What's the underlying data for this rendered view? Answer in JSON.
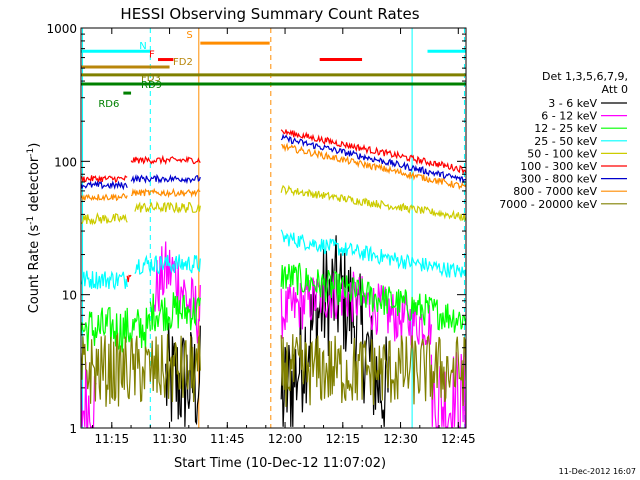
{
  "chart_data": {
    "type": "line",
    "title": "HESSI Observing Summary Count Rates",
    "xlabel": "Start Time (10-Dec-12 11:07:02)",
    "ylabel": "Count Rate (s",
    "ylabel_sup": "-1",
    "ylabel_tail": " detector",
    "ylabel_sup2": "-1",
    "ylabel_end": ")",
    "yscale": "log",
    "ylim": [
      1,
      1000
    ],
    "xlim_minutes": [
      0,
      100
    ],
    "x_ticks": [
      "11:15",
      "11:30",
      "11:45",
      "12:00",
      "12:15",
      "12:30",
      "12:45"
    ],
    "y_ticks": [
      "1",
      "10",
      "100",
      "1000"
    ],
    "legend_header": [
      "Det 1,3,5,6,7,9,",
      "Att 0"
    ],
    "footer": "11-Dec-2012 16:07",
    "series": [
      {
        "name": "3 - 6 keV",
        "color": "#000000",
        "segments": [
          {
            "x0": 22,
            "x1": 31,
            "base": 2.2,
            "spread": 0.9
          },
          {
            "x0": 52,
            "x1": 80,
            "peak_x": 66,
            "base": 1.6,
            "peak": 10,
            "spread": 0.9
          }
        ]
      },
      {
        "name": "6 - 12 keV",
        "color": "#ff00ff",
        "segments": [
          {
            "x0": 0,
            "x1": 4,
            "base": 1.4,
            "spread": 0.9
          },
          {
            "x0": 19,
            "x1": 31,
            "peak_x": 23,
            "base": 7,
            "peak": 15,
            "spread": 0.5
          },
          {
            "x0": 52,
            "x1": 91,
            "peak_x": 66,
            "base": 6,
            "peak": 10,
            "spread": 0.4
          },
          {
            "x0": 91,
            "x1": 100,
            "base": 1.5,
            "spread": 0.9
          }
        ]
      },
      {
        "name": "12 - 25 keV",
        "color": "#00ff00",
        "segments": [
          {
            "x0": 0,
            "x1": 18,
            "base": 5.5,
            "spread": 0.35
          },
          {
            "x0": 18,
            "x1": 31,
            "base": 7.5,
            "spread": 0.3
          },
          {
            "x0": 52,
            "x1": 100,
            "start": 14,
            "end": 6.5,
            "spread": 0.25
          }
        ]
      },
      {
        "name": "25 - 50 keV",
        "color": "#00ffff",
        "segments": [
          {
            "x0": 0,
            "x1": 12,
            "base": 13,
            "spread": 0.15
          },
          {
            "x0": 14,
            "x1": 31,
            "base": 17,
            "spread": 0.15
          },
          {
            "x0": 52,
            "x1": 100,
            "start": 27,
            "end": 14.5,
            "spread": 0.12
          }
        ]
      },
      {
        "name": "50 - 100 keV",
        "color": "#cccc00",
        "segments": [
          {
            "x0": 0,
            "x1": 12,
            "base": 37,
            "spread": 0.08
          },
          {
            "x0": 14,
            "x1": 31,
            "base": 45,
            "spread": 0.08
          },
          {
            "x0": 52,
            "x1": 100,
            "start": 62,
            "end": 38,
            "spread": 0.06
          }
        ]
      },
      {
        "name": "100 - 300 keV",
        "color": "#ff0000",
        "segments": [
          {
            "x0": 0,
            "x1": 12,
            "base": 74,
            "spread": 0.05
          },
          {
            "x0": 12,
            "x1": 13,
            "base": 13,
            "spread": 0.1
          },
          {
            "x0": 13,
            "x1": 31,
            "base": 102,
            "spread": 0.05
          },
          {
            "x0": 52,
            "x1": 100,
            "start": 168,
            "end": 86,
            "spread": 0.05
          }
        ]
      },
      {
        "name": "300 - 800 keV",
        "color": "#0000cc",
        "segments": [
          {
            "x0": 0,
            "x1": 12,
            "base": 66,
            "spread": 0.05
          },
          {
            "x0": 13,
            "x1": 31,
            "base": 74,
            "spread": 0.05
          },
          {
            "x0": 52,
            "x1": 100,
            "start": 150,
            "end": 72,
            "spread": 0.05
          }
        ]
      },
      {
        "name": "800 - 7000 keV",
        "color": "#ff8c00",
        "segments": [
          {
            "x0": 0,
            "x1": 12,
            "base": 54,
            "spread": 0.05
          },
          {
            "x0": 13,
            "x1": 31,
            "base": 58,
            "spread": 0.05
          },
          {
            "x0": 52,
            "x1": 100,
            "start": 130,
            "end": 64,
            "spread": 0.05
          }
        ]
      },
      {
        "name": "7000 - 20000 keV",
        "color": "#808000",
        "segments": [
          {
            "x0": 0,
            "x1": 31,
            "base": 2.7,
            "spread": 0.55
          },
          {
            "x0": 52,
            "x1": 100,
            "base": 2.7,
            "spread": 0.55
          }
        ]
      }
    ],
    "flag_bars": [
      {
        "label": "N",
        "color": "#00ffff",
        "y": 670,
        "x0": 0,
        "x1": 18
      },
      {
        "label": "N",
        "color": "#00ffff",
        "y": 670,
        "x0": 90,
        "x1": 100
      },
      {
        "label": "F",
        "color": "#ff0000",
        "y": 580,
        "x0": 20,
        "x1": 24
      },
      {
        "label": "F",
        "color": "#ff0000",
        "y": 580,
        "x0": 62,
        "x1": 73
      },
      {
        "label": "S",
        "color": "#ff8c00",
        "y": 770,
        "x0": 31,
        "x1": 49
      },
      {
        "label": "FD2",
        "color": "#b8860b",
        "y": 510,
        "x0": 0,
        "x1": 23
      },
      {
        "label": "FD3",
        "color": "#808000",
        "y": 445,
        "x0": 0,
        "x1": 100
      },
      {
        "label": "RD9",
        "color": "#008000",
        "y": 380,
        "x0": 0,
        "x1": 100
      },
      {
        "label": "RD6",
        "color": "#008000",
        "y": 325,
        "x0": 11,
        "x1": 13
      }
    ],
    "vlines": [
      {
        "x": 0.4,
        "color": "#00ffff",
        "style": "solid"
      },
      {
        "x": 18,
        "color": "#00ffff",
        "style": "dashed"
      },
      {
        "x": 30.6,
        "color": "#ff8c00",
        "style": "solid"
      },
      {
        "x": 49.3,
        "color": "#ff8c00",
        "style": "dashed"
      },
      {
        "x": 86,
        "color": "#00ffff",
        "style": "solid"
      },
      {
        "x": 99.6,
        "color": "#00ffff",
        "style": "dashed"
      }
    ]
  }
}
